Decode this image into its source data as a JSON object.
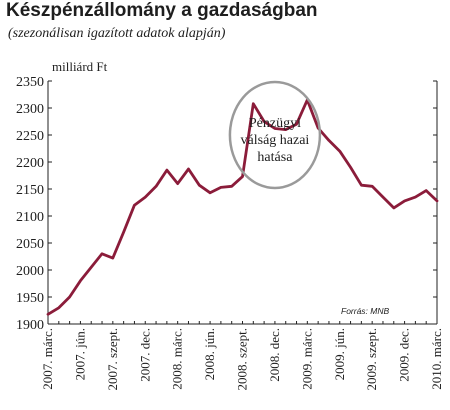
{
  "chart_data": {
    "type": "line",
    "title": "Készpénzállomány a gazdaságban",
    "subtitle": "(szezonálisan igazított adatok alapján)",
    "ylabel": "milliárd Ft",
    "ylim": [
      1900,
      2350
    ],
    "yticks": [
      1900,
      1950,
      2000,
      2050,
      2100,
      2150,
      2200,
      2250,
      2300,
      2350
    ],
    "grid": false,
    "x_tick_labels": [
      "2007. márc.",
      "2007. jún.",
      "2007. szept.",
      "2007. dec.",
      "2008. márc.",
      "2008. jún.",
      "2008. szept.",
      "2008. dec.",
      "2009. márc.",
      "2009. jún.",
      "2009. szept.",
      "2009. dec.",
      "2010. márc."
    ],
    "x": [
      "2007-03",
      "2007-04",
      "2007-05",
      "2007-06",
      "2007-07",
      "2007-08",
      "2007-09",
      "2007-10",
      "2007-11",
      "2007-12",
      "2008-01",
      "2008-02",
      "2008-03",
      "2008-04",
      "2008-05",
      "2008-06",
      "2008-07",
      "2008-08",
      "2008-09",
      "2008-10",
      "2008-11",
      "2008-12",
      "2009-01",
      "2009-02",
      "2009-03",
      "2009-04",
      "2009-05",
      "2009-06",
      "2009-07",
      "2009-08",
      "2009-09",
      "2009-10",
      "2009-11",
      "2009-12",
      "2010-01",
      "2010-02",
      "2010-03"
    ],
    "series": [
      {
        "color": "#8b1c3a",
        "values": [
          1918,
          1930,
          1950,
          1980,
          2005,
          2030,
          2022,
          2070,
          2120,
          2135,
          2155,
          2185,
          2160,
          2187,
          2157,
          2143,
          2153,
          2155,
          2173,
          2308,
          2275,
          2262,
          2260,
          2270,
          2315,
          2263,
          2240,
          2220,
          2190,
          2157,
          2155,
          2135,
          2115,
          2128,
          2135,
          2147,
          2128
        ]
      }
    ],
    "annotation": {
      "lines": [
        "Pénzügyi",
        "válság hazai",
        "hatása"
      ],
      "x": "2008-12",
      "y": 2250
    },
    "source": "Forrás: MNB"
  }
}
